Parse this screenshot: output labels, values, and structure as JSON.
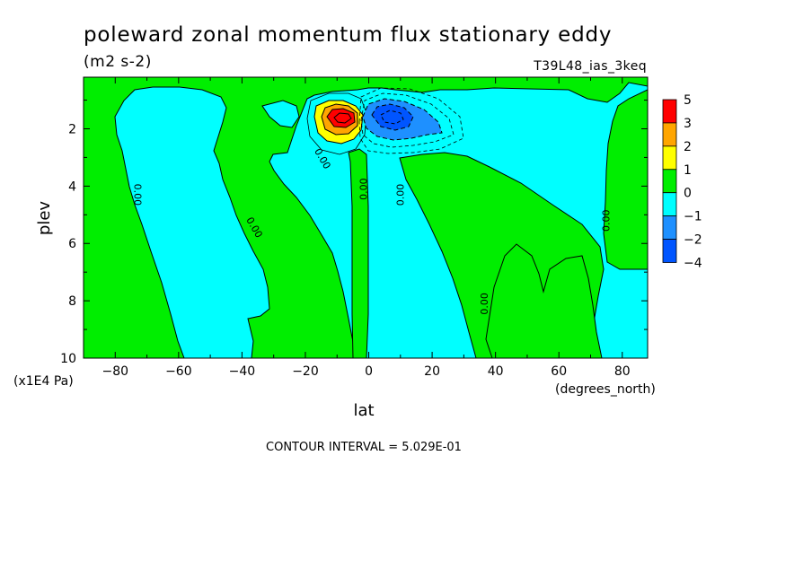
{
  "chart_data": {
    "type": "heatmap",
    "title": "poleward zonal momentum flux stationary eddy",
    "subtitle": "(m2 s-2)",
    "run_label": "T39L48_ias_3keq",
    "xlabel": "lat",
    "xunits": "(degrees_north)",
    "ylabel": "plev",
    "yunits": "(x1E4 Pa)",
    "xlim": [
      -90,
      88
    ],
    "ylim": [
      10,
      0.2
    ],
    "x_ticks": [
      -80,
      -60,
      -40,
      -20,
      0,
      20,
      40,
      60,
      80
    ],
    "x_tick_labels": [
      "−80",
      "−60",
      "−40",
      "−20",
      "0",
      "20",
      "40",
      "60",
      "80"
    ],
    "y_ticks": [
      2,
      4,
      6,
      8,
      10
    ],
    "y_tick_labels": [
      "2",
      "4",
      "6",
      "8",
      "10"
    ],
    "contour_interval_text": "CONTOUR INTERVAL = 5.029E-01",
    "zero_contour_label": "0.00",
    "colorbar": {
      "labels": [
        "5",
        "3",
        "2",
        "1",
        "0",
        "−1",
        "−2",
        "−4"
      ],
      "colors": [
        "#ff0000",
        "#ffa500",
        "#ffff00",
        "#00ee00",
        "#00ffff",
        "#1e90ff",
        "#0055ff"
      ]
    },
    "features": [
      {
        "kind": "positive_maximum",
        "lat": -6,
        "plev": 1.5,
        "approx_value": 3.5
      },
      {
        "kind": "negative_minimum",
        "lat": 8,
        "plev": 1.4,
        "approx_value": -2.5
      }
    ]
  }
}
